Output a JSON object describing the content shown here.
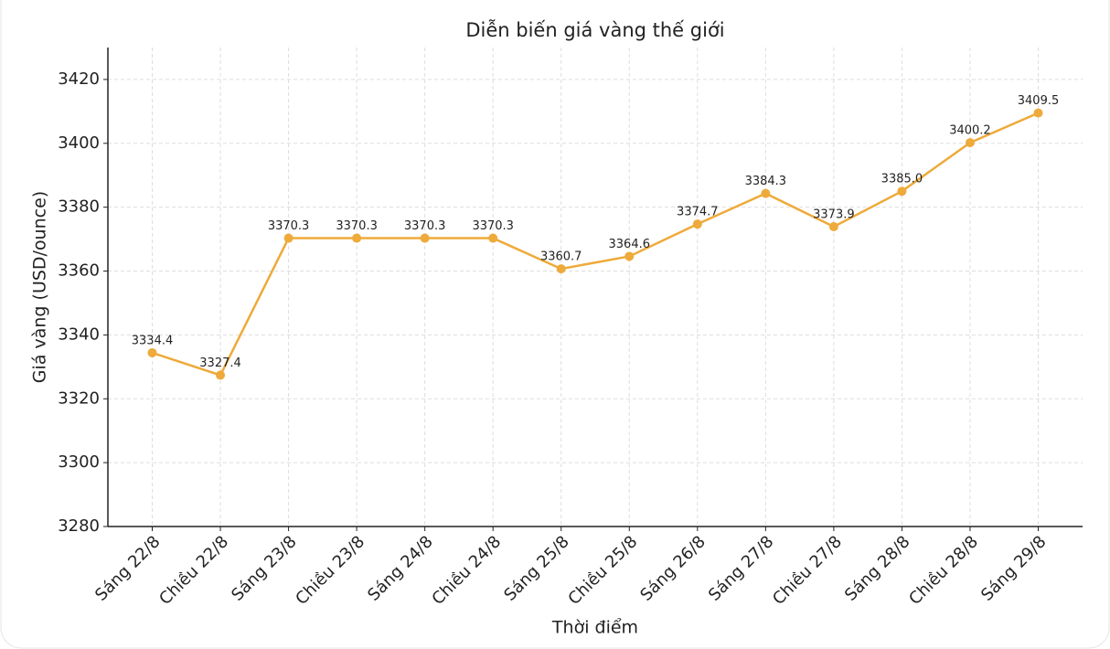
{
  "chart_data": {
    "type": "line",
    "title": "Diễn biến giá vàng thế giới",
    "x_label": "Thời điểm",
    "y_label": "Giá vàng (USD/ounce)",
    "categories": [
      "Sáng 22/8",
      "Chiều 22/8",
      "Sáng 23/8",
      "Chiều 23/8",
      "Sáng 24/8",
      "Chiều 24/8",
      "Sáng 25/8",
      "Chiều 25/8",
      "Sáng 26/8",
      "Sáng 27/8",
      "Chiều 27/8",
      "Sáng 28/8",
      "Chiều 28/8",
      "Sáng 29/8"
    ],
    "values": [
      3334.4,
      3327.4,
      3370.3,
      3370.3,
      3370.3,
      3370.3,
      3360.7,
      3364.6,
      3374.7,
      3384.3,
      3373.9,
      3385.0,
      3400.2,
      3409.5
    ],
    "value_labels": [
      "3334.4",
      "3327.4",
      "3370.3",
      "3370.3",
      "3370.3",
      "3370.3",
      "3360.7",
      "3364.6",
      "3374.7",
      "3384.3",
      "3373.9",
      "3385.0",
      "3400.2",
      "3409.5"
    ],
    "color": "#eeaa3a",
    "ylim": [
      3280,
      3430
    ],
    "yticks": [
      3280,
      3300,
      3320,
      3340,
      3360,
      3380,
      3400,
      3420
    ],
    "grid": true
  }
}
